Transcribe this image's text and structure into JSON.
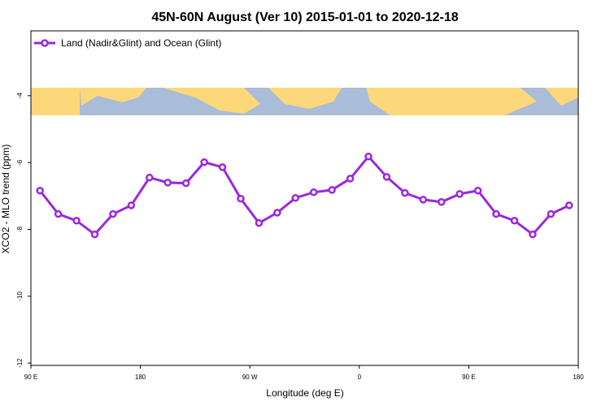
{
  "chart_data": {
    "type": "line",
    "title": "45N-60N August (Ver 10)   2015-01-01 to 2020-12-18",
    "x_label": "Longitude (deg E)",
    "y_label": "XCO2 - MLO trend (ppm)",
    "x": [
      97.5,
      112.5,
      127.5,
      142.5,
      157.5,
      172.5,
      187.5,
      202.5,
      217.5,
      232.5,
      247.5,
      262.5,
      277.5,
      292.5,
      307.5,
      322.5,
      337.5,
      352.5,
      367.5,
      382.5,
      397.5,
      412.5,
      427.5,
      442.5,
      457.5,
      472.5,
      487.5,
      502.5,
      517.5,
      532.5
    ],
    "series": [
      {
        "name": "Land (Nadir&Glint) and Ocean (Glint)",
        "color": "#9a28e0",
        "values": [
          -6.84,
          -7.54,
          -7.74,
          -8.15,
          -7.54,
          -7.28,
          -6.45,
          -6.6,
          -6.62,
          -5.99,
          -6.14,
          -7.08,
          -7.81,
          -7.5,
          -7.06,
          -6.89,
          -6.82,
          -6.48,
          -5.82,
          -6.43,
          -6.91,
          -7.11,
          -7.18,
          -6.94,
          -6.84,
          -7.54,
          -7.74,
          -8.15,
          -7.54,
          -7.28
        ]
      }
    ],
    "xlim": [
      90,
      540
    ],
    "xticks": [
      {
        "value": 90,
        "label": "90 E"
      },
      180,
      {
        "value": 270,
        "label": "90 W"
      },
      {
        "value": 360,
        "label": "0"
      },
      {
        "value": 450,
        "label": "90 E"
      },
      {
        "value": 540,
        "label": "180"
      }
    ],
    "ylim": [
      -12.07,
      -2.06
    ],
    "yticks": [
      -12,
      -10,
      -8,
      -6,
      -4
    ],
    "legend": "upper-left"
  }
}
